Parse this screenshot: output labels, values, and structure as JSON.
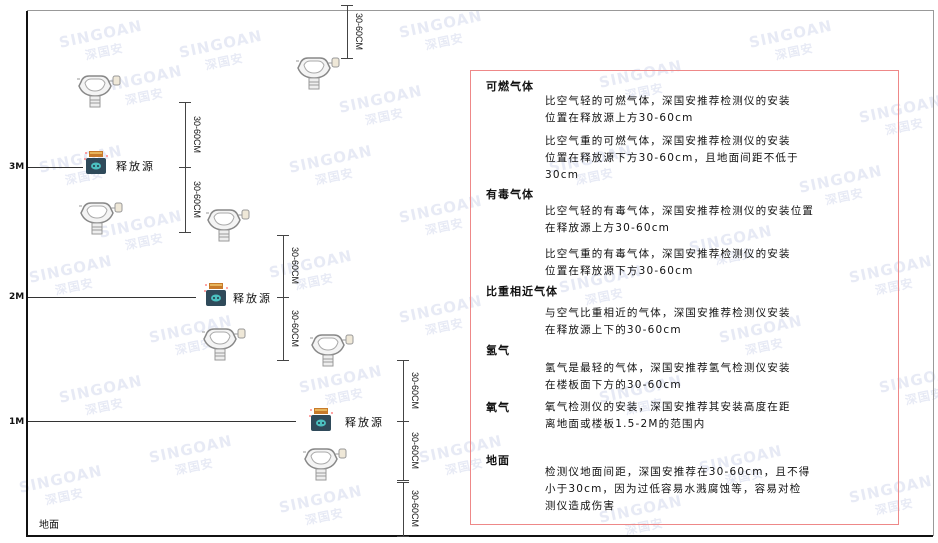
{
  "watermark": {
    "brand": "SINGOAN",
    "cn": "深国安"
  },
  "levels": {
    "l3": "3M",
    "l2": "2M",
    "l1": "1M",
    "ground": "地面"
  },
  "source_label": "释放源",
  "dimension_label": "30-60CM",
  "legend": {
    "sections": [
      {
        "title": "可燃气体",
        "paragraphs": [
          [
            "比空气轻的可燃气体，深国安推荐检测仪的安装",
            "位置在释放源上方30-60cm"
          ],
          [
            "比空气重的可燃气体，深国安推荐检测仪的安装",
            "位置在释放源下方30-60cm，且地面间距不低于",
            "30cm"
          ]
        ]
      },
      {
        "title": "有毒气体",
        "paragraphs": [
          [
            "比空气轻的有毒气体，深国安推荐检测仪的安装位置",
            "在释放源上方30-60cm"
          ],
          [
            "比空气重的有毒气体，深国安推荐检测仪的安装",
            "位置在释放源下方30-60cm"
          ]
        ]
      },
      {
        "title": "比重相近气体",
        "paragraphs": [
          [
            "与空气比重相近的气体，深国安推荐检测仪安装",
            "在释放源上下的30-60cm"
          ]
        ]
      },
      {
        "title": "氢气",
        "paragraphs": [
          [
            "氢气是最轻的气体，深国安推荐氢气检测仪安装",
            "在楼板面下方的30-60cm"
          ]
        ]
      },
      {
        "title": "氧气",
        "paragraphs": [
          [
            "氧气检测仪的安装，深国安推荐其安装高度在距",
            "离地面或楼板1.5-2M的范围内"
          ]
        ]
      },
      {
        "title": "地面",
        "paragraphs": [
          [
            "检测仪地面间距，深国安推荐在30-60cm，且不得",
            "小于30cm，因为过低容易水溅腐蚀等，容易对检",
            "测仪造成伤害"
          ]
        ]
      }
    ]
  },
  "colors": {
    "border": "#e88888",
    "source_body": "#2f4a5a",
    "source_cap": "#c77a2a",
    "detector": "#888888"
  }
}
